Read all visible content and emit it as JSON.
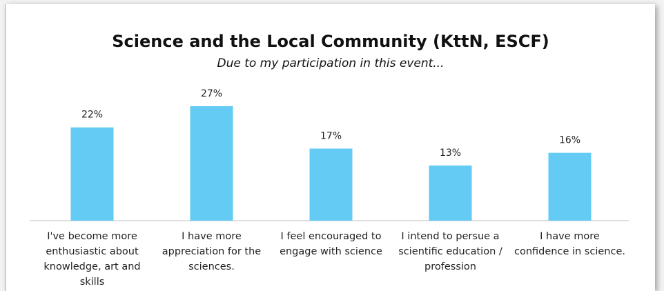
{
  "chart_data": {
    "type": "bar",
    "title": "Science and the Local Community (KttN, ESCF)",
    "subtitle": "Due to my participation in this event...",
    "categories": [
      "I've become more enthusiastic about knowledge, art and skills",
      "I have more appreciation for the sciences.",
      "I feel encouraged to engage with science",
      "I intend to persue a scientific education / profession",
      "I have more confidence in science."
    ],
    "values": [
      22,
      27,
      17,
      13,
      16
    ],
    "value_labels": [
      "22%",
      "27%",
      "17%",
      "13%",
      "16%"
    ],
    "color": "#63cbf4"
  }
}
